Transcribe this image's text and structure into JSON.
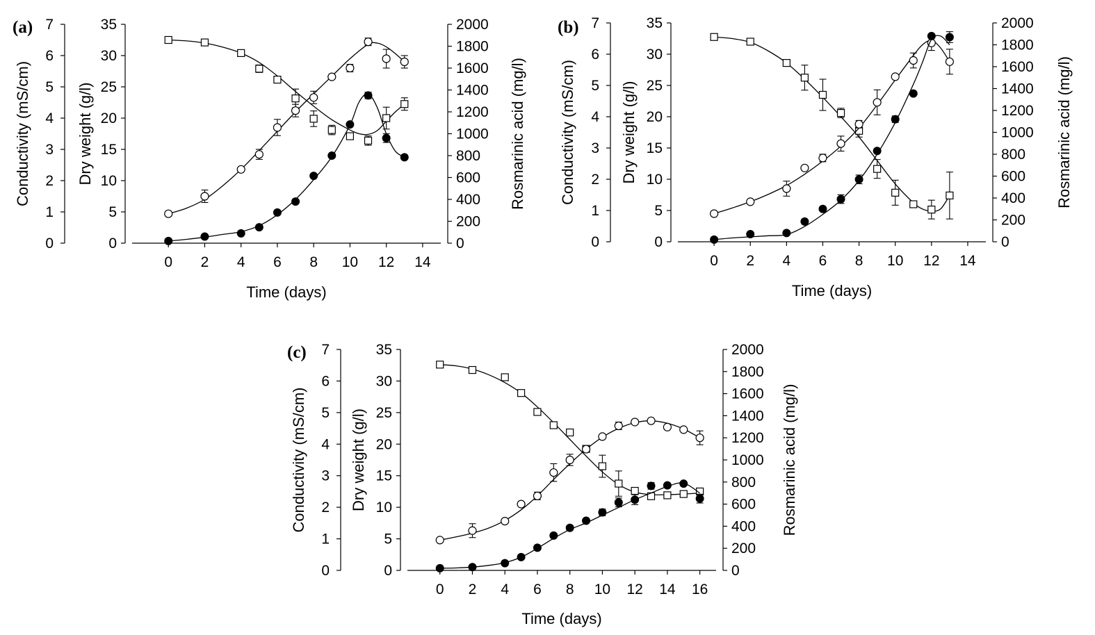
{
  "chart_data": [
    {
      "type": "line",
      "panel_label": "(a)",
      "xlabel": "Time (days)",
      "ylabel_conductivity": "Conductivity (mS/cm)",
      "ylabel_dry_weight": "Dry weight (g/l)",
      "ylabel_right": "Rosmarinic acid (mg/l)",
      "xlim": [
        -2,
        15
      ],
      "xticks": [
        0,
        2,
        4,
        6,
        8,
        10,
        12,
        14
      ],
      "conductivity_ticks": [
        0,
        1,
        2,
        3,
        4,
        5,
        6,
        7
      ],
      "dry_weight_ticks": [
        0,
        5,
        10,
        15,
        20,
        25,
        30,
        35
      ],
      "rosmarinic_ticks": [
        0,
        200,
        400,
        600,
        800,
        1000,
        1200,
        1400,
        1600,
        1800,
        2000
      ],
      "ylim_conductivity": [
        0,
        7
      ],
      "ylim_dry_weight": [
        0,
        35
      ],
      "ylim_right": [
        0,
        2000
      ],
      "series": [
        {
          "axis": "conductivity",
          "marker": "open-square",
          "x": [
            0,
            2,
            4,
            5,
            6,
            7,
            8,
            9,
            10,
            11,
            12,
            13
          ],
          "y": [
            6.5,
            6.42,
            6.08,
            5.58,
            5.23,
            4.63,
            3.98,
            3.62,
            3.42,
            3.28,
            4.0,
            4.45
          ],
          "err": [
            0,
            0,
            0,
            0.12,
            0,
            0.3,
            0.25,
            0.15,
            0.1,
            0.15,
            0.35,
            0.2
          ],
          "fit_x": [
            0,
            1,
            2,
            3,
            4,
            5,
            6,
            7,
            8,
            9,
            10,
            10.5,
            11,
            11.5,
            12,
            12.5,
            13
          ],
          "fit_y": [
            6.5,
            6.47,
            6.4,
            6.27,
            6.08,
            5.78,
            5.35,
            4.85,
            4.38,
            3.95,
            3.62,
            3.5,
            3.48,
            3.6,
            3.9,
            4.2,
            4.45
          ]
        },
        {
          "axis": "dry_weight",
          "marker": "open-circle",
          "x": [
            0,
            2,
            4,
            5,
            6,
            7,
            8,
            9,
            10,
            11,
            12,
            13
          ],
          "y": [
            4.7,
            7.5,
            11.8,
            14.2,
            18.5,
            21.2,
            23.3,
            26.6,
            28.0,
            32.2,
            29.5,
            29.0
          ],
          "err": [
            0,
            1.0,
            0,
            0.8,
            1.3,
            1.0,
            1.0,
            0,
            0.6,
            0.6,
            1.5,
            1.0
          ],
          "fit_x": [
            0,
            1,
            2,
            3,
            4,
            5,
            6,
            7,
            8,
            9,
            10,
            11,
            11.5,
            12,
            12.5,
            13
          ],
          "fit_y": [
            4.7,
            5.6,
            7.0,
            9.2,
            11.8,
            14.8,
            17.9,
            21.0,
            23.9,
            26.7,
            29.5,
            31.8,
            32.0,
            31.4,
            30.3,
            29.0
          ]
        },
        {
          "axis": "rosmarinic",
          "marker": "filled-circle",
          "x": [
            0,
            2,
            4,
            5,
            6,
            7,
            8,
            9,
            10,
            11,
            12,
            13
          ],
          "y": [
            20,
            60,
            90,
            145,
            280,
            380,
            615,
            800,
            1085,
            1350,
            960,
            785
          ],
          "err": [
            0,
            0,
            0,
            0,
            0,
            0,
            0,
            0,
            0,
            30,
            40,
            20
          ],
          "fit_x": [
            0,
            1,
            2,
            3,
            4,
            5,
            6,
            7,
            8,
            9,
            10,
            10.5,
            11,
            11.5,
            12,
            12.5,
            13
          ],
          "fit_y": [
            20,
            35,
            55,
            80,
            105,
            160,
            260,
            400,
            580,
            790,
            1080,
            1290,
            1365,
            1240,
            1000,
            840,
            785
          ]
        }
      ]
    },
    {
      "type": "line",
      "panel_label": "(b)",
      "xlabel": "Time (days)",
      "ylabel_conductivity": "Conductivity (mS/cm)",
      "ylabel_dry_weight": "Dry weight (g/l)",
      "ylabel_right": "Rosmarinic acid (mg/l)",
      "xlim": [
        -2,
        15
      ],
      "xticks": [
        0,
        2,
        4,
        6,
        8,
        10,
        12,
        14
      ],
      "conductivity_ticks": [
        0,
        1,
        2,
        3,
        4,
        5,
        6,
        7
      ],
      "dry_weight_ticks": [
        0,
        5,
        10,
        15,
        20,
        25,
        30,
        35
      ],
      "rosmarinic_ticks": [
        0,
        200,
        400,
        600,
        800,
        1000,
        1200,
        1400,
        1600,
        1800,
        2000
      ],
      "ylim_conductivity": [
        0,
        7
      ],
      "ylim_dry_weight": [
        0,
        35
      ],
      "ylim_right": [
        0,
        2000
      ],
      "series": [
        {
          "axis": "conductivity",
          "marker": "open-square",
          "x": [
            0,
            2,
            4,
            5,
            6,
            7,
            8,
            9,
            10,
            11,
            12,
            13
          ],
          "y": [
            6.55,
            6.4,
            5.72,
            5.25,
            4.7,
            4.12,
            3.55,
            2.33,
            1.57,
            1.2,
            1.03,
            1.48
          ],
          "err": [
            0,
            0,
            0,
            0.4,
            0.5,
            0.15,
            0.2,
            0.3,
            0.4,
            0,
            0.3,
            0.75
          ],
          "fit_x": [
            0,
            1,
            2,
            3,
            4,
            5,
            6,
            7,
            8,
            9,
            10,
            11,
            11.5,
            12,
            12.5,
            13
          ],
          "fit_y": [
            6.55,
            6.5,
            6.38,
            6.1,
            5.72,
            5.2,
            4.62,
            4.0,
            3.35,
            2.6,
            1.85,
            1.25,
            1.05,
            0.98,
            1.05,
            1.48
          ]
        },
        {
          "axis": "dry_weight",
          "marker": "open-circle",
          "x": [
            0,
            2,
            4,
            5,
            6,
            7,
            8,
            9,
            10,
            11,
            12,
            13
          ],
          "y": [
            4.5,
            6.4,
            8.5,
            11.8,
            13.4,
            15.7,
            18.8,
            22.3,
            26.4,
            29.0,
            31.8,
            28.8
          ],
          "err": [
            0,
            0,
            1.2,
            0,
            0.6,
            1.2,
            0.6,
            2.0,
            0,
            1.2,
            1.2,
            2.0
          ],
          "fit_x": [
            0,
            1,
            2,
            3,
            4,
            5,
            6,
            7,
            8,
            9,
            10,
            11,
            11.5,
            12,
            12.5,
            13
          ],
          "fit_y": [
            4.5,
            5.4,
            6.4,
            7.6,
            9.0,
            10.8,
            12.9,
            15.3,
            18.2,
            21.9,
            25.9,
            29.8,
            31.5,
            32.2,
            31.0,
            28.8
          ]
        },
        {
          "axis": "rosmarinic",
          "marker": "filled-circle",
          "x": [
            0,
            2,
            4,
            5,
            6,
            7,
            8,
            9,
            10,
            11,
            12,
            13
          ],
          "y": [
            20,
            70,
            80,
            185,
            300,
            390,
            570,
            830,
            1120,
            1355,
            1880,
            1870
          ],
          "err": [
            0,
            0,
            0,
            0,
            0,
            40,
            40,
            0,
            30,
            0,
            0,
            50
          ],
          "fit_x": [
            0,
            1,
            2,
            3,
            4,
            5,
            6,
            7,
            8,
            9,
            10,
            11,
            11.5,
            12,
            12.5,
            13
          ],
          "fit_y": [
            20,
            35,
            45,
            55,
            65,
            140,
            250,
            380,
            560,
            800,
            1090,
            1440,
            1640,
            1850,
            1880,
            1800
          ]
        }
      ]
    },
    {
      "type": "line",
      "panel_label": "(c)",
      "xlabel": "Time (days)",
      "ylabel_conductivity": "Conductivity (mS/cm)",
      "ylabel_dry_weight": "Dry weight (g/l)",
      "ylabel_right": "Rosmarinic acid (mg/l)",
      "xlim": [
        -2,
        17
      ],
      "xticks": [
        0,
        2,
        4,
        6,
        8,
        10,
        12,
        14,
        16
      ],
      "conductivity_ticks": [
        0,
        1,
        2,
        3,
        4,
        5,
        6,
        7
      ],
      "dry_weight_ticks": [
        0,
        5,
        10,
        15,
        20,
        25,
        30,
        35
      ],
      "rosmarinic_ticks": [
        0,
        200,
        400,
        600,
        800,
        1000,
        1200,
        1400,
        1600,
        1800,
        2000
      ],
      "ylim_conductivity": [
        0,
        7
      ],
      "ylim_dry_weight": [
        0,
        35
      ],
      "ylim_right": [
        0,
        2000
      ],
      "series": [
        {
          "axis": "conductivity",
          "marker": "open-square",
          "x": [
            0,
            2,
            4,
            5,
            6,
            7,
            8,
            9,
            10,
            11,
            12,
            13,
            14,
            15,
            16
          ],
          "y": [
            6.52,
            6.35,
            6.12,
            5.62,
            5.02,
            4.6,
            4.37,
            3.85,
            3.3,
            2.75,
            2.52,
            2.35,
            2.38,
            2.42,
            2.5
          ],
          "err": [
            0,
            0,
            0,
            0,
            0,
            0,
            0,
            0.1,
            0.35,
            0.4,
            0,
            0,
            0,
            0,
            0.1
          ],
          "fit_x": [
            0,
            1,
            2,
            3,
            4,
            5,
            6,
            7,
            8,
            9,
            10,
            11,
            12,
            13,
            14,
            15,
            16
          ],
          "fit_y": [
            6.52,
            6.48,
            6.38,
            6.2,
            5.95,
            5.62,
            5.18,
            4.68,
            4.15,
            3.62,
            3.12,
            2.72,
            2.48,
            2.4,
            2.4,
            2.42,
            2.45
          ]
        },
        {
          "axis": "dry_weight",
          "marker": "open-circle",
          "x": [
            0,
            2,
            4,
            5,
            6,
            7,
            8,
            9,
            10,
            11,
            12,
            13,
            14,
            15,
            16
          ],
          "y": [
            4.8,
            6.3,
            7.8,
            10.5,
            11.8,
            15.5,
            17.5,
            19.2,
            21.2,
            22.9,
            23.5,
            23.7,
            22.7,
            22.3,
            21.0
          ],
          "err": [
            0,
            1.1,
            0,
            0,
            0.6,
            1.4,
            0.9,
            0,
            0,
            0.6,
            0,
            0,
            0,
            0,
            1.1
          ],
          "fit_x": [
            0,
            1,
            2,
            3,
            4,
            5,
            6,
            7,
            8,
            9,
            10,
            11,
            12,
            13,
            14,
            15,
            16
          ],
          "fit_y": [
            4.8,
            5.3,
            5.9,
            6.7,
            7.9,
            9.6,
            11.8,
            14.4,
            16.9,
            19.2,
            21.1,
            22.5,
            23.4,
            23.7,
            23.3,
            22.4,
            21.0
          ]
        },
        {
          "axis": "rosmarinic",
          "marker": "filled-circle",
          "x": [
            0,
            2,
            4,
            5,
            6,
            7,
            8,
            9,
            10,
            11,
            12,
            13,
            14,
            15,
            16
          ],
          "y": [
            20,
            30,
            65,
            120,
            205,
            315,
            385,
            450,
            525,
            615,
            640,
            765,
            770,
            785,
            650
          ],
          "err": [
            0,
            0,
            0,
            0,
            0,
            20,
            20,
            0,
            30,
            40,
            45,
            30,
            0,
            0,
            40
          ],
          "fit_x": [
            0,
            1,
            2,
            3,
            4,
            5,
            6,
            7,
            8,
            9,
            10,
            11,
            12,
            13,
            14,
            15,
            16
          ],
          "fit_y": [
            20,
            22,
            30,
            45,
            70,
            120,
            200,
            290,
            370,
            430,
            500,
            570,
            640,
            700,
            760,
            790,
            700
          ]
        }
      ]
    }
  ]
}
